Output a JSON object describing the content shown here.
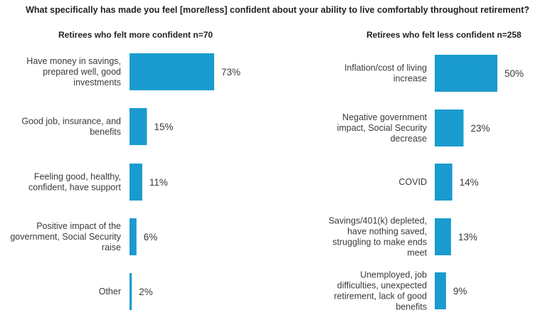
{
  "title": "What specifically has made you feel [more/less] confident about your ability to live comfortably throughout retirement?",
  "colors": {
    "bar": "#1a9bcf",
    "text": "#3a3a3a"
  },
  "chart_data": [
    {
      "type": "bar",
      "orientation": "horizontal",
      "title": "Retirees who felt more confident n=70",
      "unit": "%",
      "categories": [
        [
          "Have money in savings,",
          "prepared well, good",
          "investments"
        ],
        [
          "Good job, insurance, and",
          "benefits"
        ],
        [
          "Feeling good, healthy,",
          "confident, have support"
        ],
        [
          "Positive impact of the",
          "government, Social Security",
          "raise"
        ],
        [
          "Other"
        ]
      ],
      "values": [
        73,
        15,
        11,
        6,
        2
      ],
      "value_labels": [
        "73%",
        "15%",
        "11%",
        "6%",
        "2%"
      ]
    },
    {
      "type": "bar",
      "orientation": "horizontal",
      "title": "Retirees who felt less confident n=258",
      "unit": "%",
      "categories": [
        [
          "Inflation/cost of living",
          "increase"
        ],
        [
          "Negative government",
          "impact, Social Security",
          "decrease"
        ],
        [
          "COVID"
        ],
        [
          "Savings/401(k) depleted,",
          "have nothing saved,",
          "struggling to make ends",
          "meet"
        ],
        [
          "Unemployed, job",
          "difficulties, unexpected",
          "retirement, lack of good",
          "benefits"
        ]
      ],
      "values": [
        50,
        23,
        14,
        13,
        9
      ],
      "value_labels": [
        "50%",
        "23%",
        "14%",
        "13%",
        "9%"
      ]
    }
  ]
}
